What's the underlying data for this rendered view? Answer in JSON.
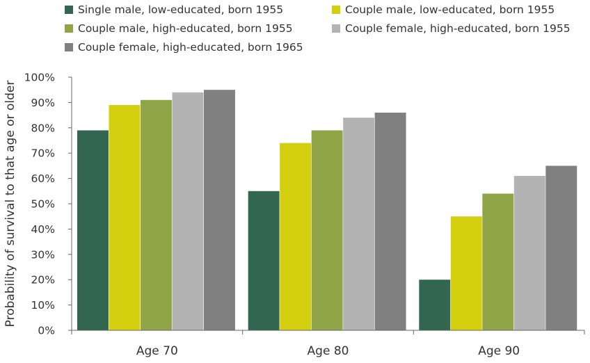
{
  "chart_data": {
    "type": "bar",
    "categories": [
      "Age 70",
      "Age 80",
      "Age 90"
    ],
    "series": [
      {
        "name": "Single male, low-educated, born 1955",
        "color": "#336650",
        "values": [
          79,
          55,
          20
        ]
      },
      {
        "name": "Couple male, low-educated, born 1955",
        "color": "#d4cf0e",
        "values": [
          89,
          74,
          45
        ]
      },
      {
        "name": "Couple male, high-educated, born 1955",
        "color": "#8fa547",
        "values": [
          91,
          79,
          54
        ]
      },
      {
        "name": "Couple female, high-educated, born 1955",
        "color": "#b3b3b3",
        "values": [
          94,
          84,
          61
        ]
      },
      {
        "name": "Couple female, high-educated, born 1965",
        "color": "#808080",
        "values": [
          95,
          86,
          65
        ]
      }
    ],
    "ylabel": "Probability of survival to that age or older",
    "yticks": [
      "0%",
      "10%",
      "20%",
      "30%",
      "40%",
      "50%",
      "60%",
      "70%",
      "80%",
      "90%",
      "100%"
    ],
    "ylim": [
      0,
      100
    ],
    "grid": false,
    "legend_position": "top"
  }
}
